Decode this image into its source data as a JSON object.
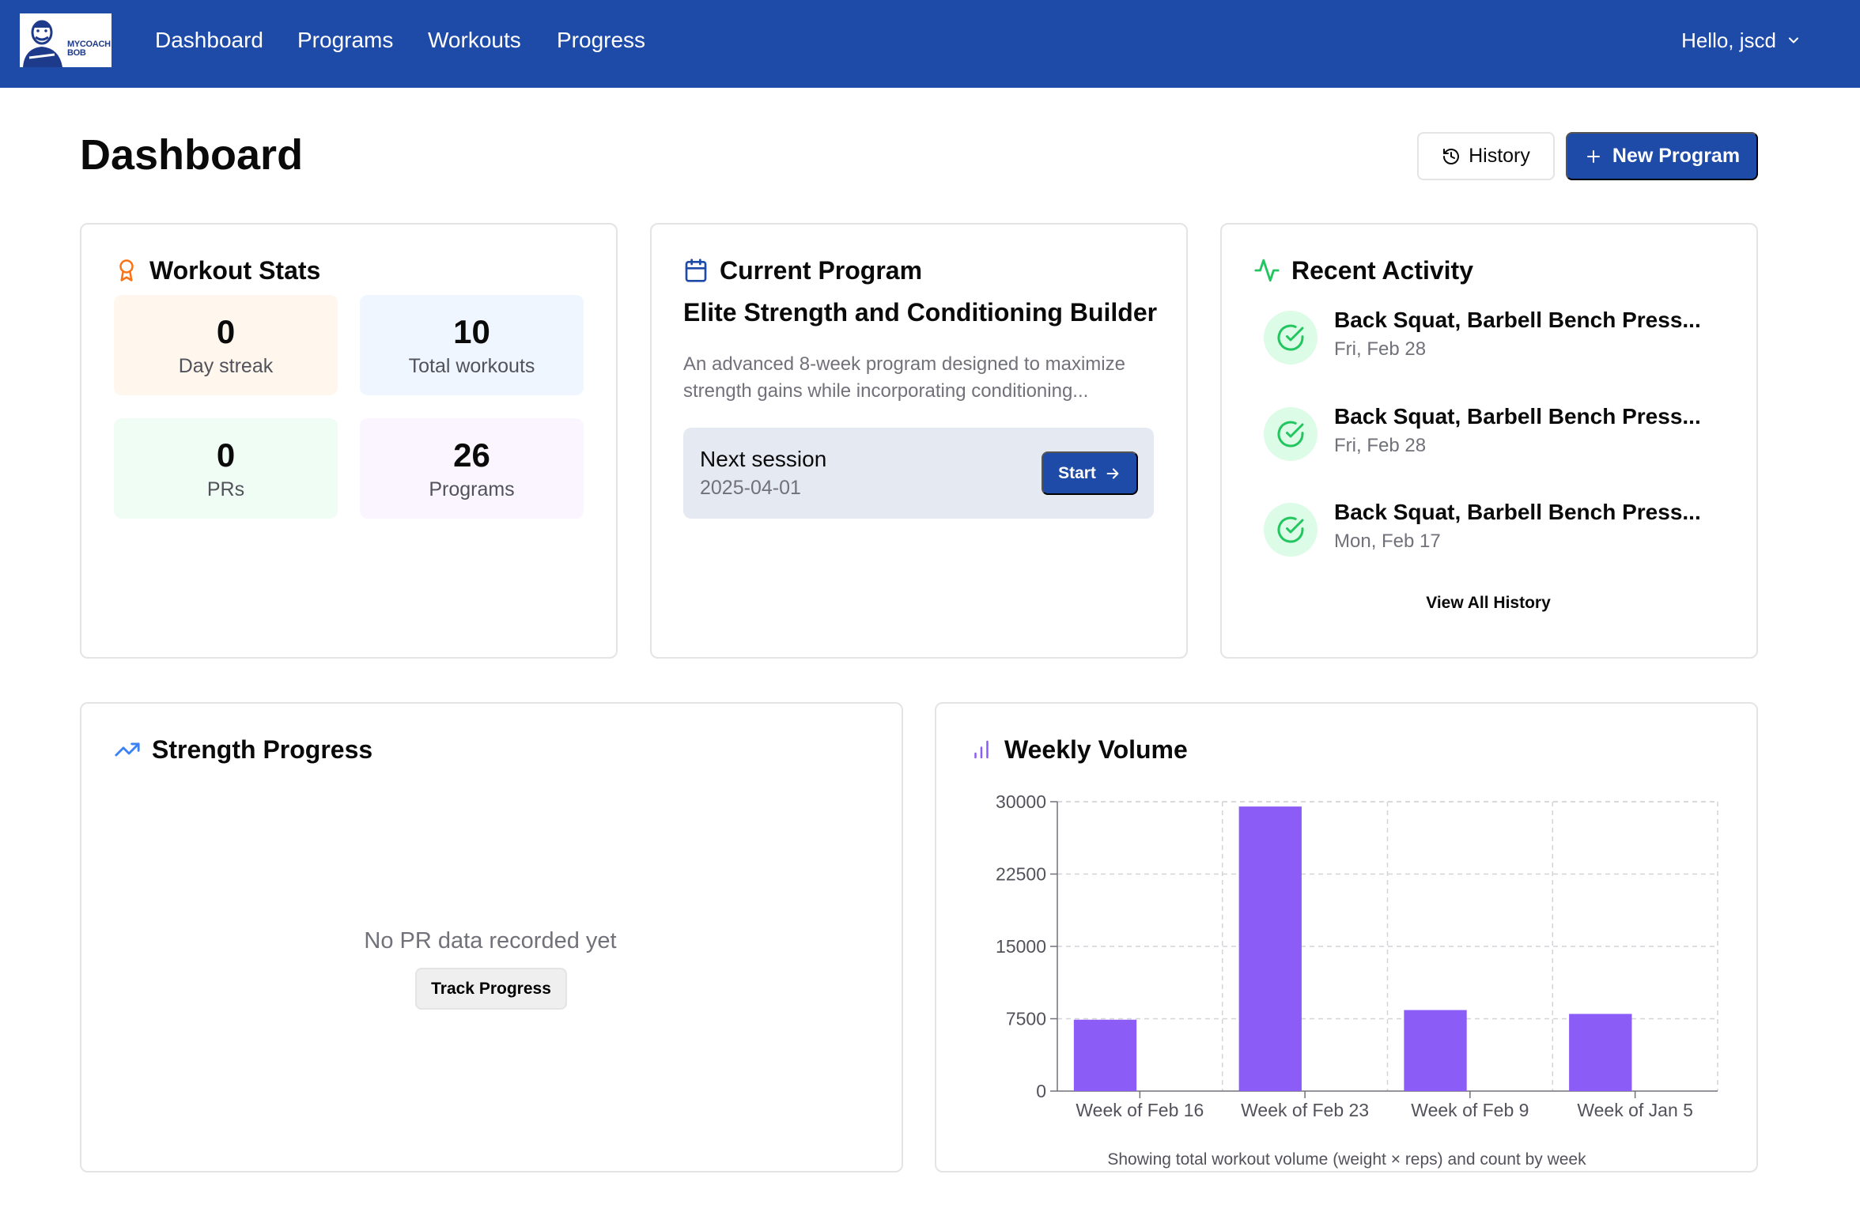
{
  "nav": {
    "logo_text_line1": "MYCOACH",
    "logo_text_line2": "BOB",
    "links": [
      "Dashboard",
      "Programs",
      "Workouts",
      "Progress"
    ],
    "user_greeting": "Hello, jscd"
  },
  "header": {
    "title": "Dashboard",
    "history_button": "History",
    "new_program_button": "New Program"
  },
  "workout_stats": {
    "title": "Workout Stats",
    "stats": [
      {
        "value": "0",
        "label": "Day streak",
        "bg": "#fff7ed"
      },
      {
        "value": "10",
        "label": "Total workouts",
        "bg": "#eff6ff"
      },
      {
        "value": "0",
        "label": "PRs",
        "bg": "#f0fdf4"
      },
      {
        "value": "26",
        "label": "Programs",
        "bg": "#faf5ff"
      }
    ]
  },
  "current_program": {
    "title": "Current Program",
    "name": "Elite Strength and Conditioning Builder",
    "description": "An advanced 8-week program designed to maximize strength gains while incorporating conditioning...",
    "next_session_label": "Next session",
    "next_session_date": "2025-04-01",
    "start_button": "Start"
  },
  "recent_activity": {
    "title": "Recent Activity",
    "items": [
      {
        "title": "Back Squat, Barbell Bench Press...",
        "date": "Fri, Feb 28"
      },
      {
        "title": "Back Squat, Barbell Bench Press...",
        "date": "Fri, Feb 28"
      },
      {
        "title": "Back Squat, Barbell Bench Press...",
        "date": "Mon, Feb 17"
      }
    ],
    "view_all": "View All History"
  },
  "strength_progress": {
    "title": "Strength Progress",
    "empty_message": "No PR data recorded yet",
    "track_button": "Track Progress"
  },
  "weekly_volume": {
    "title": "Weekly Volume",
    "caption": "Showing total workout volume (weight × reps) and count by week"
  },
  "colors": {
    "brand": "#1e4aa8",
    "bar": "#8b5cf6",
    "success": "#22c55e",
    "orange": "#f97316"
  },
  "chart_data": {
    "type": "bar",
    "categories": [
      "Week of Feb 16",
      "Week of Feb 23",
      "Week of Feb 9",
      "Week of Jan 5"
    ],
    "values": [
      7400,
      29500,
      8400,
      8000
    ],
    "yticks": [
      "0",
      "7500",
      "15000",
      "22500",
      "30000"
    ],
    "ylim": [
      0,
      30000
    ],
    "grid": true,
    "xlabel": "",
    "ylabel": ""
  }
}
